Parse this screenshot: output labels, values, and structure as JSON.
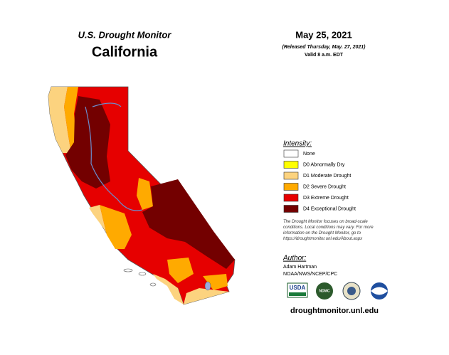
{
  "header": {
    "agency": "U.S. Drought Monitor",
    "state": "California",
    "date": "May 25, 2021",
    "released": "(Released Thursday, May. 27, 2021)",
    "valid": "Valid 8 a.m. EDT"
  },
  "legend": {
    "title": "Intensity:",
    "items": [
      {
        "label": "None",
        "color": "#ffffff"
      },
      {
        "label": "D0 Abnormally Dry",
        "color": "#ffff00"
      },
      {
        "label": "D1 Moderate Drought",
        "color": "#fcd37f"
      },
      {
        "label": "D2 Severe Drought",
        "color": "#ffaa00"
      },
      {
        "label": "D3 Extreme Drought",
        "color": "#e60000"
      },
      {
        "label": "D4 Exceptional Drought",
        "color": "#730000"
      }
    ]
  },
  "note": "The Drought Monitor focuses on broad-scale conditions. Local conditions may vary. For more information on the Drought Monitor, go to https://droughtmonitor.unl.edu/About.aspx",
  "author": {
    "title": "Author:",
    "name": "Adam Hartman",
    "org": "NOAA/NWS/NCEP/CPC"
  },
  "logos": {
    "usda": "USDA",
    "ndmc": "NDMC"
  },
  "url": "droughtmonitor.unl.edu"
}
